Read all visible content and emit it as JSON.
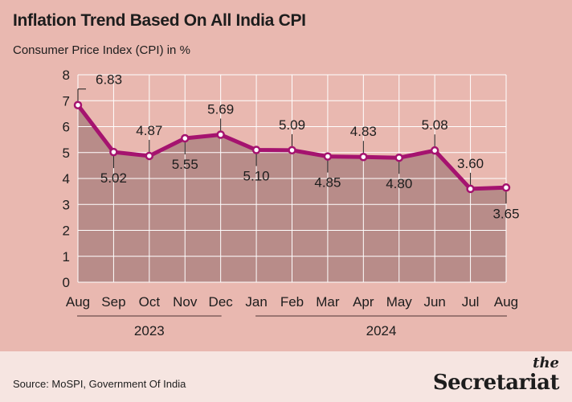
{
  "header": {
    "title": "Inflation Trend Based On All India CPI",
    "subtitle": "Consumer Price Index (CPI) in %"
  },
  "footer": {
    "source": "Source: MoSPI, Government Of India",
    "brand_the": "the",
    "brand_name": "Secretariat"
  },
  "colors": {
    "line": "#a5136f",
    "area": "#b88c89",
    "background": "#e9b8b0",
    "grid": "#ffffff"
  },
  "chart_data": {
    "type": "line",
    "title": "Inflation Trend Based On All India CPI",
    "ylabel": "Consumer Price Index (CPI) in %",
    "categories": [
      "Aug",
      "Sep",
      "Oct",
      "Nov",
      "Dec",
      "Jan",
      "Feb",
      "Mar",
      "Apr",
      "May",
      "Jun",
      "Jul",
      "Aug"
    ],
    "values": [
      6.83,
      5.02,
      4.87,
      5.55,
      5.69,
      5.1,
      5.09,
      4.85,
      4.83,
      4.8,
      5.08,
      3.6,
      3.65
    ],
    "value_labels": [
      "6.83",
      "5.02",
      "4.87",
      "5.55",
      "5.69",
      "5.10",
      "5.09",
      "4.85",
      "4.83",
      "4.80",
      "5.08",
      "3.60",
      "3.65"
    ],
    "yticks": [
      "0",
      "1",
      "2",
      "3",
      "4",
      "5",
      "6",
      "7",
      "8"
    ],
    "ylim": [
      0,
      8
    ],
    "grid": true,
    "area_fill": true,
    "year_groups": [
      {
        "label": "2023",
        "from": 0,
        "to": 4
      },
      {
        "label": "2024",
        "from": 5,
        "to": 12
      }
    ]
  }
}
